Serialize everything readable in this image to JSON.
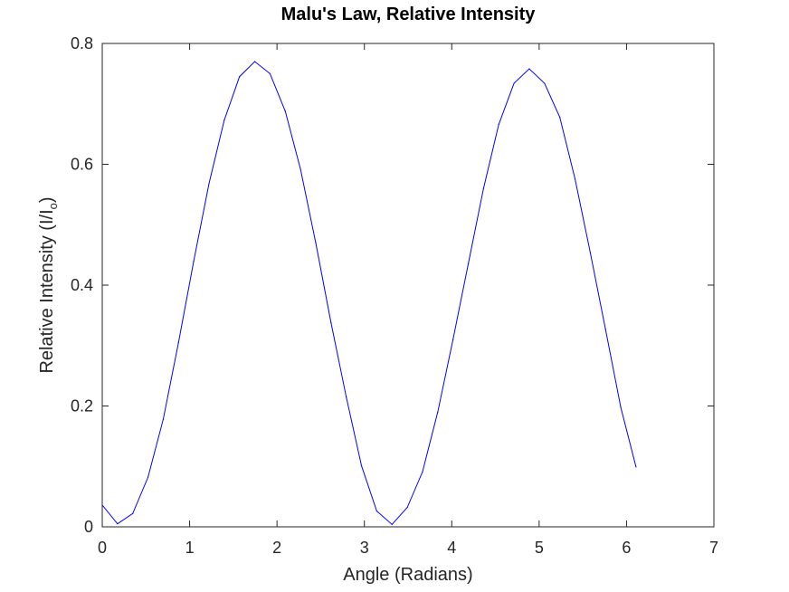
{
  "chart_data": {
    "type": "line",
    "title": "Malu's Law, Relative Intensity",
    "xlabel": "Angle (Radians)",
    "ylabel": {
      "main": "Relative Intensity (I/I",
      "subscript": "o",
      "close": ")"
    },
    "xlim": [
      0,
      7
    ],
    "ylim": [
      0,
      0.8
    ],
    "xticks": [
      0,
      1,
      2,
      3,
      4,
      5,
      6,
      7
    ],
    "xtick_labels": [
      "0",
      "1",
      "2",
      "3",
      "4",
      "5",
      "6",
      "7"
    ],
    "yticks": [
      0,
      0.2,
      0.4,
      0.6,
      0.8
    ],
    "ytick_labels": [
      "0",
      "0.2",
      "0.4",
      "0.6",
      "0.8"
    ],
    "grid": false,
    "line_color": "#0000ff",
    "series": [
      {
        "x": [
          0,
          0.1745,
          0.349,
          0.5236,
          0.6981,
          0.8727,
          1.0472,
          1.2217,
          1.3963,
          1.5708,
          1.7453,
          1.9199,
          2.0944,
          2.2689,
          2.4435,
          2.618,
          2.7925,
          2.9671,
          3.1416,
          3.3161,
          3.4907,
          3.6652,
          3.8397,
          4.0143,
          4.1888,
          4.3633,
          4.5379,
          4.7124,
          4.8869,
          5.0615,
          5.236,
          5.4105,
          5.5851,
          5.7596,
          5.9341,
          6.1087
        ],
        "y": [
          0.036,
          0.005,
          0.022,
          0.082,
          0.178,
          0.305,
          0.44,
          0.568,
          0.673,
          0.745,
          0.77,
          0.75,
          0.688,
          0.592,
          0.47,
          0.338,
          0.215,
          0.101,
          0.026,
          0.004,
          0.032,
          0.091,
          0.19,
          0.31,
          0.435,
          0.56,
          0.666,
          0.734,
          0.758,
          0.734,
          0.678,
          0.576,
          0.454,
          0.327,
          0.198,
          0.099
        ]
      }
    ]
  }
}
